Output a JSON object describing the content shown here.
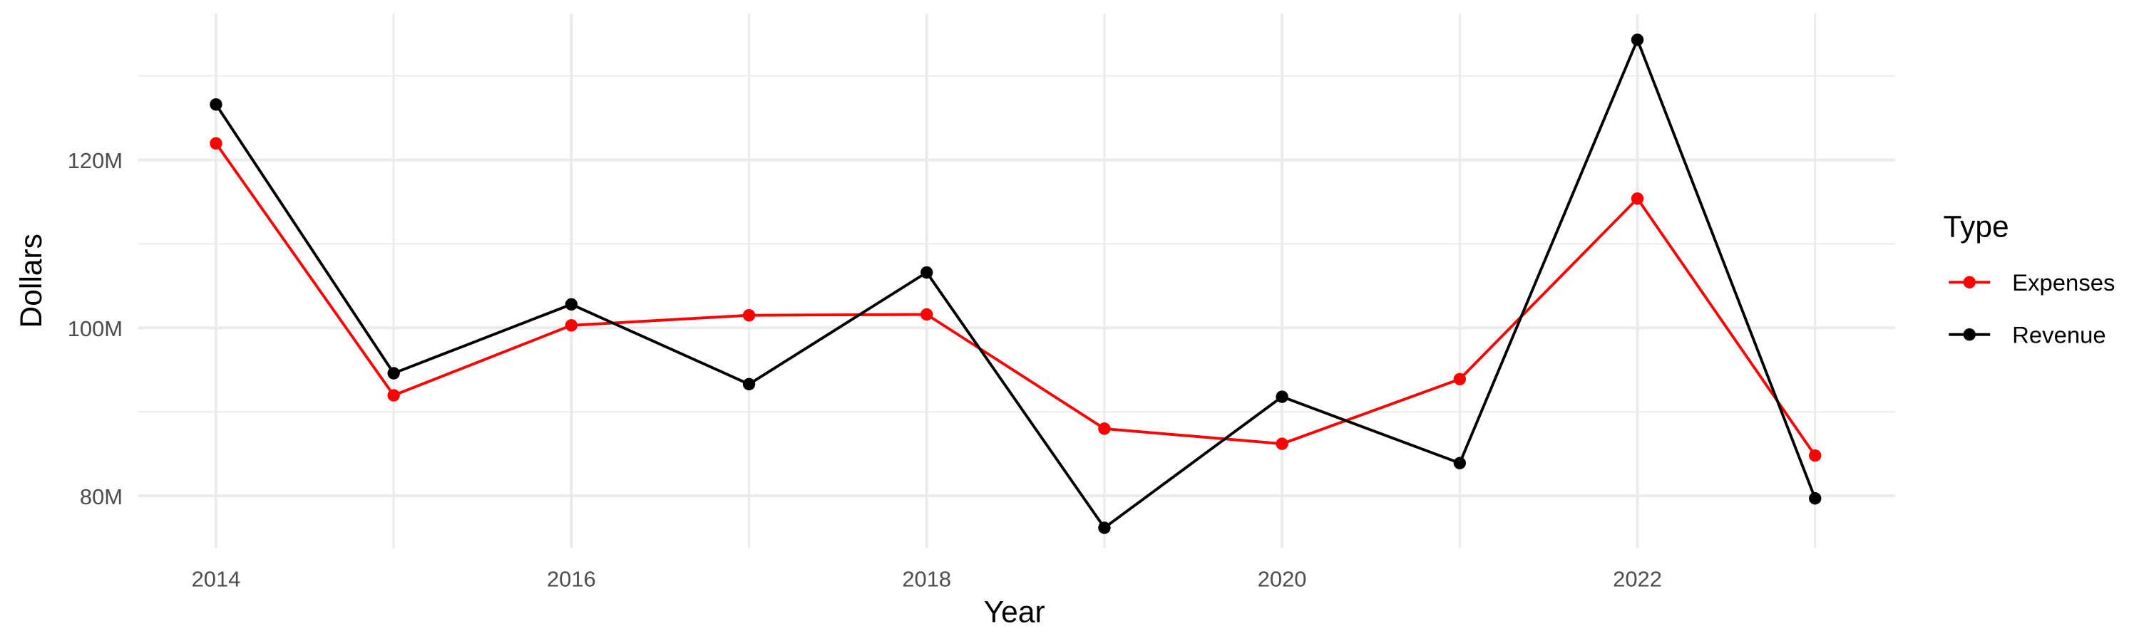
{
  "chart_data": {
    "type": "line",
    "x_label": "Year",
    "y_label": "Dollars",
    "legend_title": "Type",
    "x": [
      2014,
      2015,
      2016,
      2017,
      2018,
      2019,
      2020,
      2021,
      2022,
      2023
    ],
    "series": [
      {
        "name": "Expenses",
        "color": "#ff0000",
        "values": [
          121970000,
          91970000,
          100300000,
          101500000,
          101600000,
          88000000,
          86200000,
          93900000,
          115400000,
          84800000
        ]
      },
      {
        "name": "Revenue",
        "color": "#000000",
        "values": [
          126600000,
          94600000,
          102800000,
          93300000,
          106600000,
          76200000,
          91800000,
          83900000,
          134300000,
          79700000
        ]
      }
    ],
    "xlim": [
      2013.56,
      2023.45
    ],
    "xticks": [
      2014,
      2016,
      2018,
      2020,
      2022
    ],
    "minor_xticks": [
      2015,
      2017,
      2019,
      2021,
      2023
    ],
    "ylim": [
      73800000,
      137400000
    ],
    "yticks": [
      {
        "value": 80000000,
        "label": "80M"
      },
      {
        "value": 100000000,
        "label": "100M"
      },
      {
        "value": 120000000,
        "label": "120M"
      }
    ],
    "minor_yticks": [
      90000000,
      110000000,
      130000000
    ],
    "grid": true,
    "legend": "right"
  }
}
